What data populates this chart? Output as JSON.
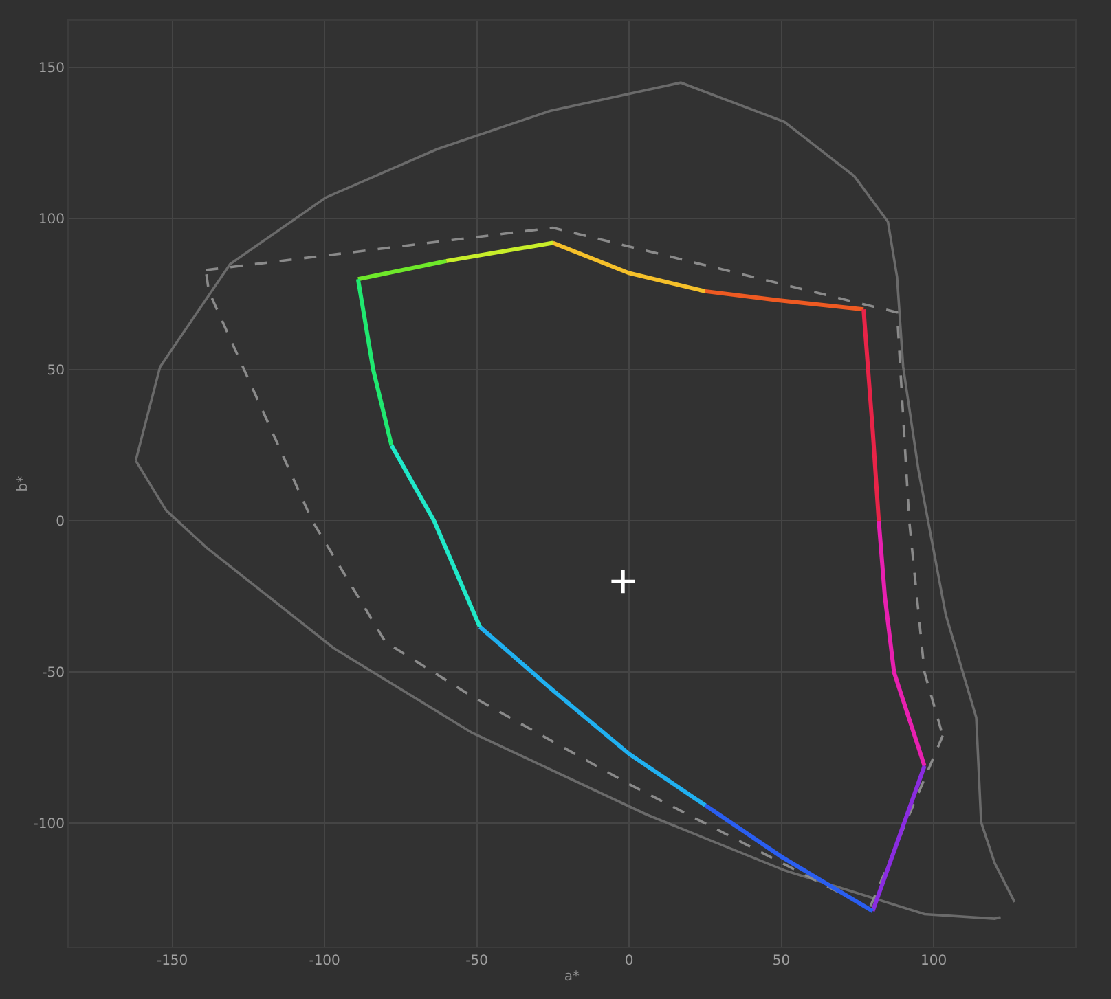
{
  "chart_data": {
    "type": "line",
    "xlabel": "a*",
    "ylabel": "b*",
    "xlim": [
      -184,
      146.5
    ],
    "ylim": [
      -140.8,
      165.5
    ],
    "xticks": [
      -150,
      -100,
      -50,
      0,
      50,
      100
    ],
    "yticks": [
      -100,
      -50,
      0,
      50,
      100,
      150
    ],
    "grid": true,
    "line_style": "solid",
    "marker": "none",
    "series": [
      {
        "color": "#6a6a6a",
        "x": [
          -162,
          -154,
          -131,
          -99.6,
          -63,
          -26,
          17,
          51,
          74,
          85,
          88,
          90,
          95,
          104,
          114,
          115.6,
          120,
          126.6
        ],
        "values": [
          20,
          51,
          85,
          107,
          123,
          135.6,
          145,
          132,
          114,
          99,
          80.7,
          51,
          17,
          -31,
          -65,
          -99.6,
          -113,
          -126
        ]
      },
      {
        "color": "#6a6a6a",
        "x": [
          122,
          120,
          97,
          51,
          5.6,
          -51.6,
          -97,
          -138.5,
          -152,
          -162
        ],
        "values": [
          -131,
          -131.5,
          -130,
          -115.5,
          -97,
          -70,
          -42,
          -9,
          3.5,
          20
        ]
      },
      {
        "color": "#8a8a8a",
        "line_style": "dashed",
        "x": [
          -139,
          -25,
          88,
          92,
          97,
          103
        ],
        "values": [
          83,
          97,
          69,
          0,
          -50,
          -71
        ]
      },
      {
        "color": "#8a8a8a",
        "line_style": "dashed",
        "x": [
          103,
          79,
          50,
          0,
          -51.6,
          -80,
          -104,
          -138,
          -139
        ],
        "values": [
          -71,
          -128,
          -113,
          -87,
          -58,
          -40,
          0,
          76,
          83
        ]
      },
      {
        "color": "#6ee82a",
        "x": [
          -89,
          -60
        ],
        "values": [
          80,
          86
        ]
      },
      {
        "color": "#c8ee2a",
        "x": [
          -60,
          -25
        ],
        "values": [
          86,
          92
        ]
      },
      {
        "color": "#f5c02a",
        "x": [
          -25,
          0,
          25
        ],
        "values": [
          92,
          82,
          76
        ]
      },
      {
        "color": "#ee5a22",
        "x": [
          25,
          49,
          77
        ],
        "values": [
          76,
          73,
          70
        ]
      },
      {
        "color": "#e82448",
        "x": [
          77,
          80,
          82
        ],
        "values": [
          70,
          30,
          0
        ]
      },
      {
        "color": "#e820b0",
        "x": [
          82,
          84,
          87,
          97
        ],
        "values": [
          0,
          -25,
          -50,
          -81
        ]
      },
      {
        "color": "#8a2ce0",
        "x": [
          97,
          80
        ],
        "values": [
          -81,
          -129
        ]
      },
      {
        "color": "#2a5ef0",
        "x": [
          80,
          50,
          25
        ],
        "values": [
          -129,
          -111,
          -94
        ]
      },
      {
        "color": "#20b0f0",
        "x": [
          25,
          0,
          -25,
          -49
        ],
        "values": [
          -94,
          -77,
          -56,
          -35
        ]
      },
      {
        "color": "#20e8c8",
        "x": [
          -49,
          -64,
          -78
        ],
        "values": [
          -35,
          0,
          25
        ]
      },
      {
        "color": "#20e870",
        "x": [
          -78,
          -84,
          -89
        ],
        "values": [
          25,
          50,
          80
        ]
      },
      {
        "type": "scatter",
        "marker": "cross",
        "color": "#ffffff",
        "x": [
          -2
        ],
        "values": [
          -20
        ]
      }
    ]
  }
}
